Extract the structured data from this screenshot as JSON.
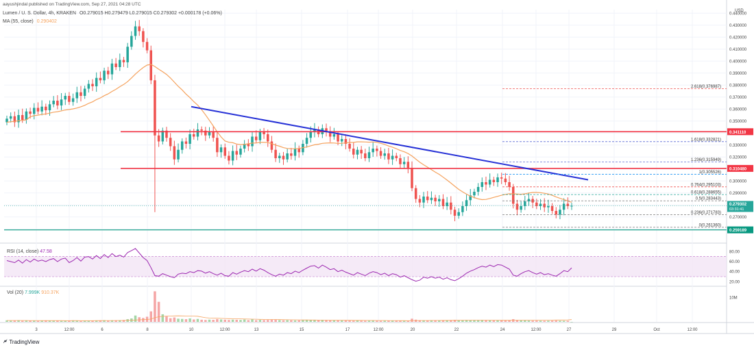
{
  "header": {
    "published_by": "aayushjindal published on TradingView.com, Sep 27, 2021 04:28 UTC",
    "symbol": "Lumen / U. S. Dollar, 4h, KRAKEN",
    "ohlc": "O0.279015 H0.279479 L0.279015 C0.279302 +0.000178 (+0.06%)",
    "ma_label": "MA (55, close)",
    "ma_value": "0.290402"
  },
  "colors": {
    "up": "#26a69a",
    "down": "#ef5350",
    "ma": "#f5a25d",
    "trend": "#2530d6",
    "level": "#f23645",
    "support": "#089981",
    "fib_text": "#444",
    "rsi": "#9c27b0"
  },
  "chart_data": [
    {
      "type": "candlestick",
      "title": "Lumen / U. S. Dollar, 4h, KRAKEN",
      "currency": "USD",
      "ylim": [
        0.255,
        0.443
      ],
      "y_ticks": [
        "0.440000",
        "0.430000",
        "0.420000",
        "0.410000",
        "0.400000",
        "0.390000",
        "0.380000",
        "0.370000",
        "0.360000",
        "0.350000",
        "0.340000",
        "0.330000",
        "0.320000",
        "0.310000",
        "0.300000",
        "0.290000",
        "0.280000",
        "0.270000",
        "0.260000"
      ],
      "x_labels": [
        "3",
        "12:00",
        "6",
        "8",
        "10",
        "12:00",
        "13",
        "15",
        "17",
        "12:00",
        "20",
        "22",
        "24",
        "12:00",
        "27",
        "29",
        "Oct",
        "12:00"
      ],
      "closes": [
        0.352,
        0.354,
        0.349,
        0.355,
        0.351,
        0.358,
        0.356,
        0.361,
        0.358,
        0.362,
        0.359,
        0.364,
        0.367,
        0.363,
        0.368,
        0.371,
        0.366,
        0.369,
        0.374,
        0.371,
        0.377,
        0.381,
        0.379,
        0.386,
        0.384,
        0.392,
        0.389,
        0.398,
        0.395,
        0.401,
        0.399,
        0.412,
        0.421,
        0.429,
        0.425,
        0.416,
        0.409,
        0.384,
        0.338,
        0.333,
        0.342,
        0.336,
        0.329,
        0.318,
        0.326,
        0.333,
        0.331,
        0.339,
        0.337,
        0.343,
        0.342,
        0.338,
        0.341,
        0.336,
        0.324,
        0.328,
        0.321,
        0.317,
        0.325,
        0.322,
        0.327,
        0.331,
        0.329,
        0.337,
        0.334,
        0.341,
        0.339,
        0.333,
        0.326,
        0.319,
        0.321,
        0.318,
        0.323,
        0.321,
        0.327,
        0.324,
        0.331,
        0.336,
        0.341,
        0.343,
        0.339,
        0.344,
        0.341,
        0.337,
        0.339,
        0.333,
        0.335,
        0.331,
        0.327,
        0.322,
        0.326,
        0.323,
        0.319,
        0.324,
        0.327,
        0.325,
        0.321,
        0.323,
        0.318,
        0.321,
        0.319,
        0.314,
        0.316,
        0.311,
        0.294,
        0.285,
        0.282,
        0.287,
        0.284,
        0.286,
        0.283,
        0.285,
        0.279,
        0.282,
        0.276,
        0.271,
        0.274,
        0.279,
        0.284,
        0.288,
        0.291,
        0.295,
        0.299,
        0.297,
        0.301,
        0.299,
        0.303,
        0.302,
        0.299,
        0.295,
        0.281,
        0.276,
        0.279,
        0.283,
        0.285,
        0.282,
        0.279,
        0.281,
        0.278,
        0.279,
        0.275,
        0.272,
        0.276,
        0.281,
        0.279,
        0.2793
      ],
      "ma": {
        "name": "MA (55, close)",
        "last": 0.290402
      },
      "levels": [
        {
          "label": "0.341110",
          "value": 0.34111
        },
        {
          "label": "0.310480",
          "value": 0.31048
        }
      ],
      "support": {
        "label": "0.259189",
        "value": 0.259189
      },
      "current_price": {
        "label": "0.279302",
        "countdown": "03:31:41",
        "value": 0.279302
      },
      "trendline": {
        "from": [
          10,
          0.362
        ],
        "to": [
          25.5,
          0.301
        ]
      },
      "fibonacci": [
        {
          "ratio": "2.618",
          "label": "2.618(0.376987)",
          "value": 0.376987
        },
        {
          "ratio": "1.618",
          "label": "1.618(0.332821)",
          "value": 0.332821
        },
        {
          "ratio": "1.236",
          "label": "1.236(0.315949)",
          "value": 0.315949
        },
        {
          "ratio": "1",
          "label": "1(0.305526)",
          "value": 0.305526
        },
        {
          "ratio": "0.764",
          "label": "0.764(0.295103)",
          "value": 0.295103
        },
        {
          "ratio": "0.618",
          "label": "0.618(0.288655)",
          "value": 0.288655
        },
        {
          "ratio": "0.5",
          "label": "0.5(0.283443)",
          "value": 0.283443
        },
        {
          "ratio": "0.236",
          "label": "0.236(0.271783)",
          "value": 0.271783
        },
        {
          "ratio": "0",
          "label": "0(0.261360)",
          "value": 0.26136
        }
      ]
    },
    {
      "type": "line",
      "title": "RSI (14, close)",
      "value_label": "47.58",
      "ylim": [
        15,
        90
      ],
      "y_ticks": [
        "80.00",
        "60.00",
        "40.00",
        "20.00"
      ],
      "band": [
        30,
        70
      ],
      "values": [
        62,
        60,
        58,
        63,
        57,
        64,
        59,
        65,
        61,
        63,
        60,
        64,
        66,
        60,
        65,
        67,
        58,
        62,
        68,
        61,
        69,
        70,
        65,
        72,
        66,
        74,
        68,
        76,
        70,
        73,
        69,
        78,
        82,
        86,
        77,
        68,
        62,
        48,
        32,
        31,
        36,
        33,
        30,
        28,
        35,
        37,
        36,
        40,
        38,
        42,
        41,
        37,
        40,
        36,
        33,
        37,
        32,
        31,
        38,
        35,
        39,
        42,
        40,
        45,
        41,
        46,
        43,
        38,
        34,
        31,
        35,
        33,
        38,
        36,
        41,
        38,
        43,
        47,
        51,
        52,
        47,
        53,
        49,
        44,
        46,
        40,
        43,
        39,
        36,
        33,
        38,
        35,
        32,
        37,
        40,
        38,
        34,
        37,
        32,
        36,
        34,
        29,
        32,
        28,
        24,
        21,
        23,
        29,
        27,
        30,
        27,
        29,
        25,
        28,
        24,
        22,
        26,
        31,
        37,
        41,
        44,
        48,
        51,
        49,
        53,
        50,
        54,
        53,
        49,
        45,
        33,
        31,
        36,
        40,
        42,
        38,
        35,
        38,
        34,
        36,
        33,
        31,
        36,
        42,
        40,
        47.58
      ]
    },
    {
      "type": "bar",
      "title": "Vol (20)",
      "volume_label": "7.999K",
      "volume_ma_label": "910.37K",
      "y_ticks": [
        "10M"
      ],
      "ylim": [
        0,
        14000000
      ],
      "values": [
        620000,
        480000,
        520000,
        690000,
        410000,
        560000,
        530000,
        450000,
        380000,
        420000,
        590000,
        460000,
        510000,
        470000,
        390000,
        440000,
        520000,
        610000,
        450000,
        380000,
        530000,
        480000,
        420000,
        560000,
        610000,
        700000,
        520000,
        640000,
        580000,
        690000,
        770000,
        1100000,
        1400000,
        2600000,
        1900000,
        1600000,
        2100000,
        4300000,
        12500000,
        8200000,
        3100000,
        2200000,
        1500000,
        1800000,
        1300000,
        1200000,
        1100000,
        1400000,
        980000,
        1200000,
        870000,
        760000,
        910000,
        830000,
        1100000,
        980000,
        870000,
        760000,
        900000,
        850000,
        780000,
        950000,
        700000,
        1050000,
        680000,
        820000,
        740000,
        790000,
        880000,
        950000,
        720000,
        630000,
        700000,
        650000,
        590000,
        620000,
        680000,
        750000,
        840000,
        810000,
        640000,
        700000,
        620000,
        580000,
        600000,
        550000,
        540000,
        520000,
        510000,
        480000,
        560000,
        470000,
        450000,
        490000,
        530000,
        440000,
        410000,
        460000,
        430000,
        470000,
        420000,
        450000,
        400000,
        380000,
        1300000,
        900000,
        700000,
        650000,
        580000,
        620000,
        560000,
        600000,
        640000,
        590000,
        720000,
        810000,
        680000,
        700000,
        760000,
        720000,
        680000,
        640000,
        700000,
        610000,
        650000,
        590000,
        620000,
        580000,
        540000,
        600000,
        1100000,
        760000,
        650000,
        580000,
        520000,
        480000,
        500000,
        470000,
        440000,
        460000,
        490000,
        520000,
        450000,
        420000,
        410000,
        7999
      ],
      "ma_values": [
        560000,
        560000,
        550000,
        560000,
        550000,
        550000,
        540000,
        530000,
        520000,
        510000,
        520000,
        510000,
        510000,
        500000,
        500000,
        490000,
        490000,
        500000,
        500000,
        490000,
        490000,
        490000,
        490000,
        500000,
        510000,
        520000,
        530000,
        540000,
        550000,
        560000,
        580000,
        620000,
        670000,
        760000,
        830000,
        890000,
        970000,
        1150000,
        1700000,
        2100000,
        2250000,
        2340000,
        2390000,
        2450000,
        2460000,
        2440000,
        2420000,
        2400000,
        2340000,
        2290000,
        2000000,
        1700000,
        1580000,
        1510000,
        1480000,
        1430000,
        1380000,
        1330000,
        1290000,
        1250000,
        1220000,
        1190000,
        1140000,
        1130000,
        1080000,
        1050000,
        1020000,
        990000,
        970000,
        950000,
        920000,
        890000,
        870000,
        850000,
        830000,
        810000,
        790000,
        780000,
        770000,
        760000,
        740000,
        730000,
        720000,
        700000,
        690000,
        680000,
        670000,
        650000,
        640000,
        630000,
        620000,
        610000,
        600000,
        590000,
        580000,
        570000,
        560000,
        550000,
        540000,
        530000,
        520000,
        510000,
        500000,
        490000,
        520000,
        540000,
        550000,
        560000,
        570000,
        580000,
        590000,
        600000,
        610000,
        620000,
        630000,
        640000,
        650000,
        660000,
        670000,
        680000,
        690000,
        700000,
        710000,
        690000,
        680000,
        670000,
        660000,
        650000,
        640000,
        650000,
        660000,
        670000,
        680000,
        680000,
        690000,
        700000,
        710000,
        720000,
        720000,
        730000,
        740000,
        750000,
        760000,
        770000,
        780000,
        910370
      ]
    }
  ],
  "footer": {
    "brand": "TradingView"
  }
}
